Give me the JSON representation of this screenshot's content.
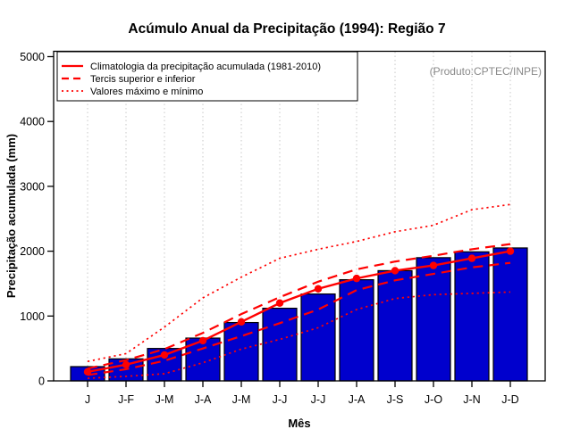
{
  "watermark": "(Produto:CPTEC/INPE)",
  "chart_data": {
    "type": "bar",
    "title": "Acúmulo Anual da Precipitação (1994): Região 7",
    "xlabel": "Mês",
    "ylabel": "Precipitação acumulada (mm)",
    "ylim": [
      0,
      5000
    ],
    "yticks": [
      0,
      1000,
      2000,
      3000,
      4000,
      5000
    ],
    "categories": [
      "J",
      "J-F",
      "J-M",
      "J-A",
      "J-M",
      "J-J",
      "J-J",
      "J-A",
      "J-S",
      "J-O",
      "J-N",
      "J-D"
    ],
    "grid": "vertical-dotted-gray",
    "legend_position": "top-left",
    "bar_color": "#0000CD",
    "line_color": "#FF0000",
    "series": [
      {
        "id": "accumulated-precipitation-1994",
        "type": "bar",
        "values": [
          220,
          340,
          500,
          660,
          900,
          1120,
          1340,
          1560,
          1700,
          1900,
          1990,
          2050
        ]
      },
      {
        "id": "climatology-1981-2010",
        "type": "line",
        "style": "solid",
        "marker": "circle",
        "values": [
          140,
          250,
          400,
          620,
          910,
          1200,
          1420,
          1580,
          1700,
          1780,
          1890,
          2000
        ]
      },
      {
        "id": "upper-tercile",
        "type": "line",
        "style": "dashed",
        "values": [
          190,
          320,
          490,
          740,
          1030,
          1290,
          1530,
          1720,
          1840,
          1930,
          2030,
          2110
        ]
      },
      {
        "id": "lower-tercile",
        "type": "line",
        "style": "dashed",
        "values": [
          90,
          180,
          310,
          500,
          690,
          890,
          1100,
          1400,
          1550,
          1650,
          1750,
          1820
        ]
      },
      {
        "id": "maximum",
        "type": "line",
        "style": "dotted",
        "values": [
          300,
          420,
          830,
          1280,
          1600,
          1890,
          2030,
          2150,
          2300,
          2400,
          2640,
          2720
        ]
      },
      {
        "id": "minimum",
        "type": "line",
        "style": "dotted",
        "values": [
          40,
          70,
          110,
          280,
          490,
          640,
          820,
          1100,
          1270,
          1330,
          1350,
          1370
        ]
      }
    ],
    "legend": [
      {
        "label": "Climatologia da precipitação acumulada (1981-2010)",
        "style": "solid"
      },
      {
        "label": "Tercis superior e inferior",
        "style": "dashed"
      },
      {
        "label": "Valores máximo e mínimo",
        "style": "dotted"
      }
    ]
  }
}
